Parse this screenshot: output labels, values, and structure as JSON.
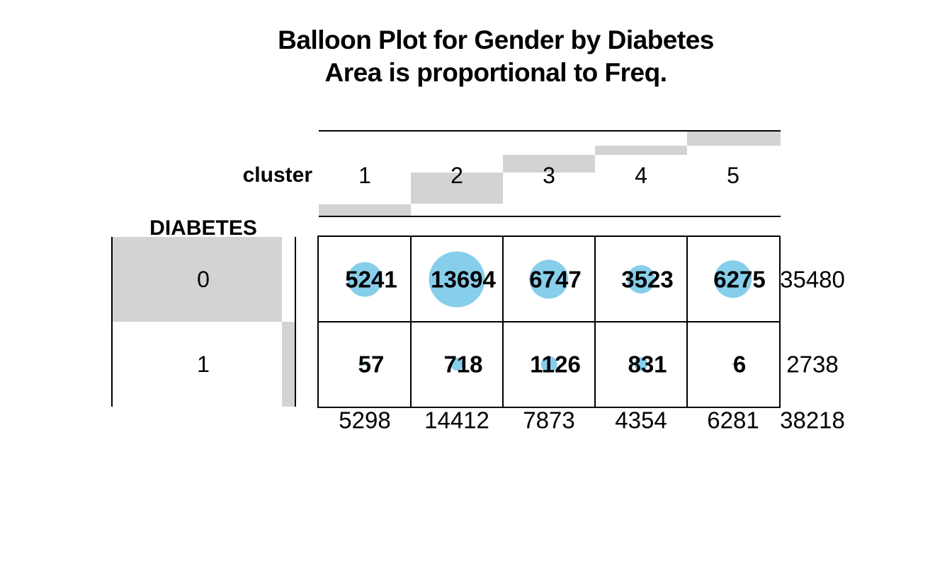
{
  "title": {
    "line1": "Balloon Plot for Gender by Diabetes",
    "line2": "Area is proportional to Freq."
  },
  "chart_data": {
    "type": "balloon",
    "title": "Balloon Plot for Gender by Diabetes",
    "subtitle": "Area is proportional to Freq.",
    "x_label": "cluster",
    "y_label": "DIABETES",
    "columns": [
      "1",
      "2",
      "3",
      "4",
      "5"
    ],
    "rows": [
      "0",
      "1"
    ],
    "series": [
      {
        "name": "0",
        "values": [
          5241,
          13694,
          6747,
          3523,
          6275
        ]
      },
      {
        "name": "1",
        "values": [
          57,
          718,
          1126,
          831,
          6
        ]
      }
    ],
    "row_totals": [
      35480,
      2738
    ],
    "col_totals": [
      5298,
      14412,
      7873,
      4354,
      6281
    ],
    "grand_total": 38218,
    "balloon_color": "#87CEEB",
    "margin_bar_color": "#D3D3D3",
    "line_color": "#000000",
    "legend": "none",
    "grid": "cell borders on"
  }
}
